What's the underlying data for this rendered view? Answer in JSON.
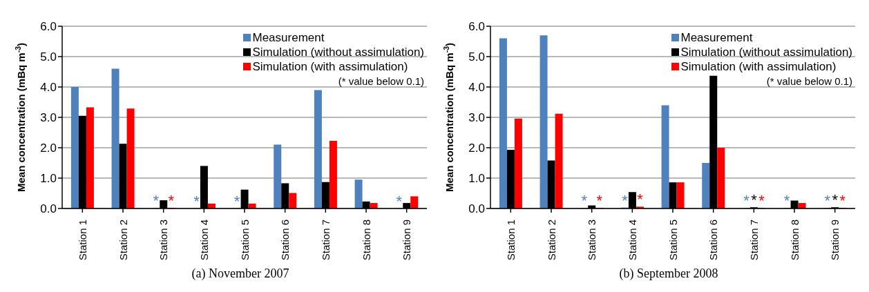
{
  "chart_data": [
    {
      "type": "bar",
      "title": "(a) November 2007",
      "ylabel": "Mean concentration (mBq m$^{-3}$)",
      "categories": [
        "Station 1",
        "Station 2",
        "Station 3",
        "Station 4",
        "Station 5",
        "Station 6",
        "Station 7",
        "Station 8",
        "Station 9"
      ],
      "series": [
        {
          "name": "Measurement",
          "color": "#4f81bd",
          "values": [
            4.0,
            4.6,
            0.02,
            0.01,
            0.01,
            2.1,
            3.9,
            0.95,
            0.01
          ],
          "value_labels": [
            null,
            null,
            "*",
            "*",
            "*",
            null,
            null,
            null,
            "*"
          ]
        },
        {
          "name": "Simulation (without assimulation)",
          "color": "#000000",
          "values": [
            3.05,
            2.13,
            0.27,
            1.4,
            0.62,
            0.83,
            0.87,
            0.23,
            0.18
          ]
        },
        {
          "name": "Simulation (with assimulation)",
          "color": "#ff0000",
          "values": [
            3.33,
            3.29,
            0.02,
            0.16,
            0.16,
            0.51,
            2.23,
            0.18,
            0.4
          ],
          "value_labels": [
            null,
            null,
            "*",
            null,
            null,
            null,
            null,
            null,
            null
          ]
        }
      ],
      "ylim": [
        0,
        6
      ],
      "yticks": [
        {
          "value": 0,
          "label": "0.0"
        },
        {
          "value": 1,
          "label": "1.0"
        },
        {
          "value": 2,
          "label": "2.0"
        },
        {
          "value": 3,
          "label": "3.0"
        },
        {
          "value": 4,
          "label": "4.0"
        },
        {
          "value": 5,
          "label": "5.0"
        },
        {
          "value": 6,
          "label": "6.0"
        }
      ],
      "grid": "y",
      "legend": "top right",
      "annotations": [
        "(* value below 0.1)"
      ]
    },
    {
      "type": "bar",
      "title": "(b) September 2008",
      "ylabel": "Mean concentration (mBq m$^{-3}$)",
      "categories": [
        "Station 1",
        "Station 2",
        "Station 3",
        "Station 4",
        "Station 5",
        "Station 6",
        "Station 7",
        "Station 8",
        "Station 9"
      ],
      "series": [
        {
          "name": "Measurement",
          "color": "#4f81bd",
          "values": [
            5.6,
            5.7,
            0.02,
            0.03,
            3.4,
            1.5,
            0.02,
            0.02,
            0.02
          ],
          "value_labels": [
            null,
            null,
            "*",
            "*",
            null,
            null,
            "*",
            "*",
            "*"
          ]
        },
        {
          "name": "Simulation (without assimulation)",
          "color": "#000000",
          "values": [
            1.93,
            1.58,
            0.1,
            0.54,
            0.86,
            4.37,
            0.04,
            0.26,
            0.04
          ],
          "value_labels": [
            null,
            null,
            null,
            null,
            null,
            null,
            "*",
            null,
            "*"
          ]
        },
        {
          "name": "Simulation (with assimulation)",
          "color": "#ff0000",
          "values": [
            2.96,
            3.12,
            0.02,
            0.06,
            0.86,
            2.0,
            0.02,
            0.18,
            0.02
          ],
          "value_labels": [
            null,
            null,
            "*",
            "*",
            null,
            null,
            "*",
            null,
            "*"
          ]
        }
      ],
      "ylim": [
        0,
        6
      ],
      "yticks": [
        {
          "value": 0,
          "label": "0.0"
        },
        {
          "value": 1,
          "label": "1.0"
        },
        {
          "value": 2,
          "label": "2.0"
        },
        {
          "value": 3,
          "label": "3.0"
        },
        {
          "value": 4,
          "label": "4.0"
        },
        {
          "value": 5,
          "label": "5.0"
        },
        {
          "value": 6,
          "label": "6.0"
        }
      ],
      "grid": "y",
      "legend": "top right",
      "annotations": [
        "(* value below 0.1)"
      ]
    }
  ]
}
